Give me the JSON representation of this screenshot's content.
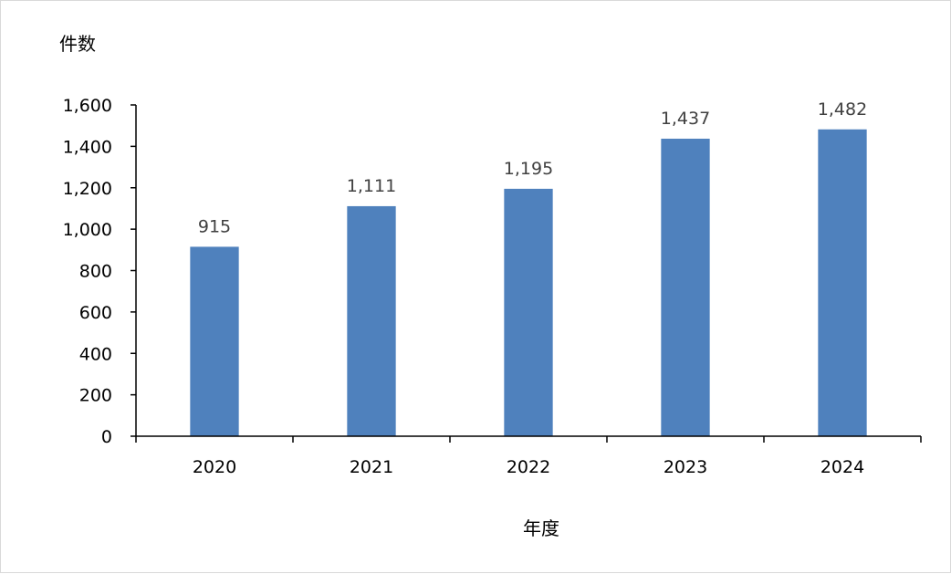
{
  "chart_data": {
    "type": "bar",
    "categories": [
      "2020",
      "2021",
      "2022",
      "2023",
      "2024"
    ],
    "values": [
      915,
      1111,
      1195,
      1437,
      1482
    ],
    "data_labels": [
      "915",
      "1,111",
      "1,195",
      "1,437",
      "1,482"
    ],
    "title": "",
    "xlabel": "年度",
    "ylabel": "件数",
    "ylim": [
      0,
      1600
    ],
    "yticks": [
      0,
      200,
      400,
      600,
      800,
      1000,
      1200,
      1400,
      1600
    ],
    "ytick_labels": [
      "0",
      "200",
      "400",
      "600",
      "800",
      "1,000",
      "1,200",
      "1,400",
      "1,600"
    ],
    "grid": false,
    "legend": "none",
    "bar_color": "#4f81bd"
  }
}
